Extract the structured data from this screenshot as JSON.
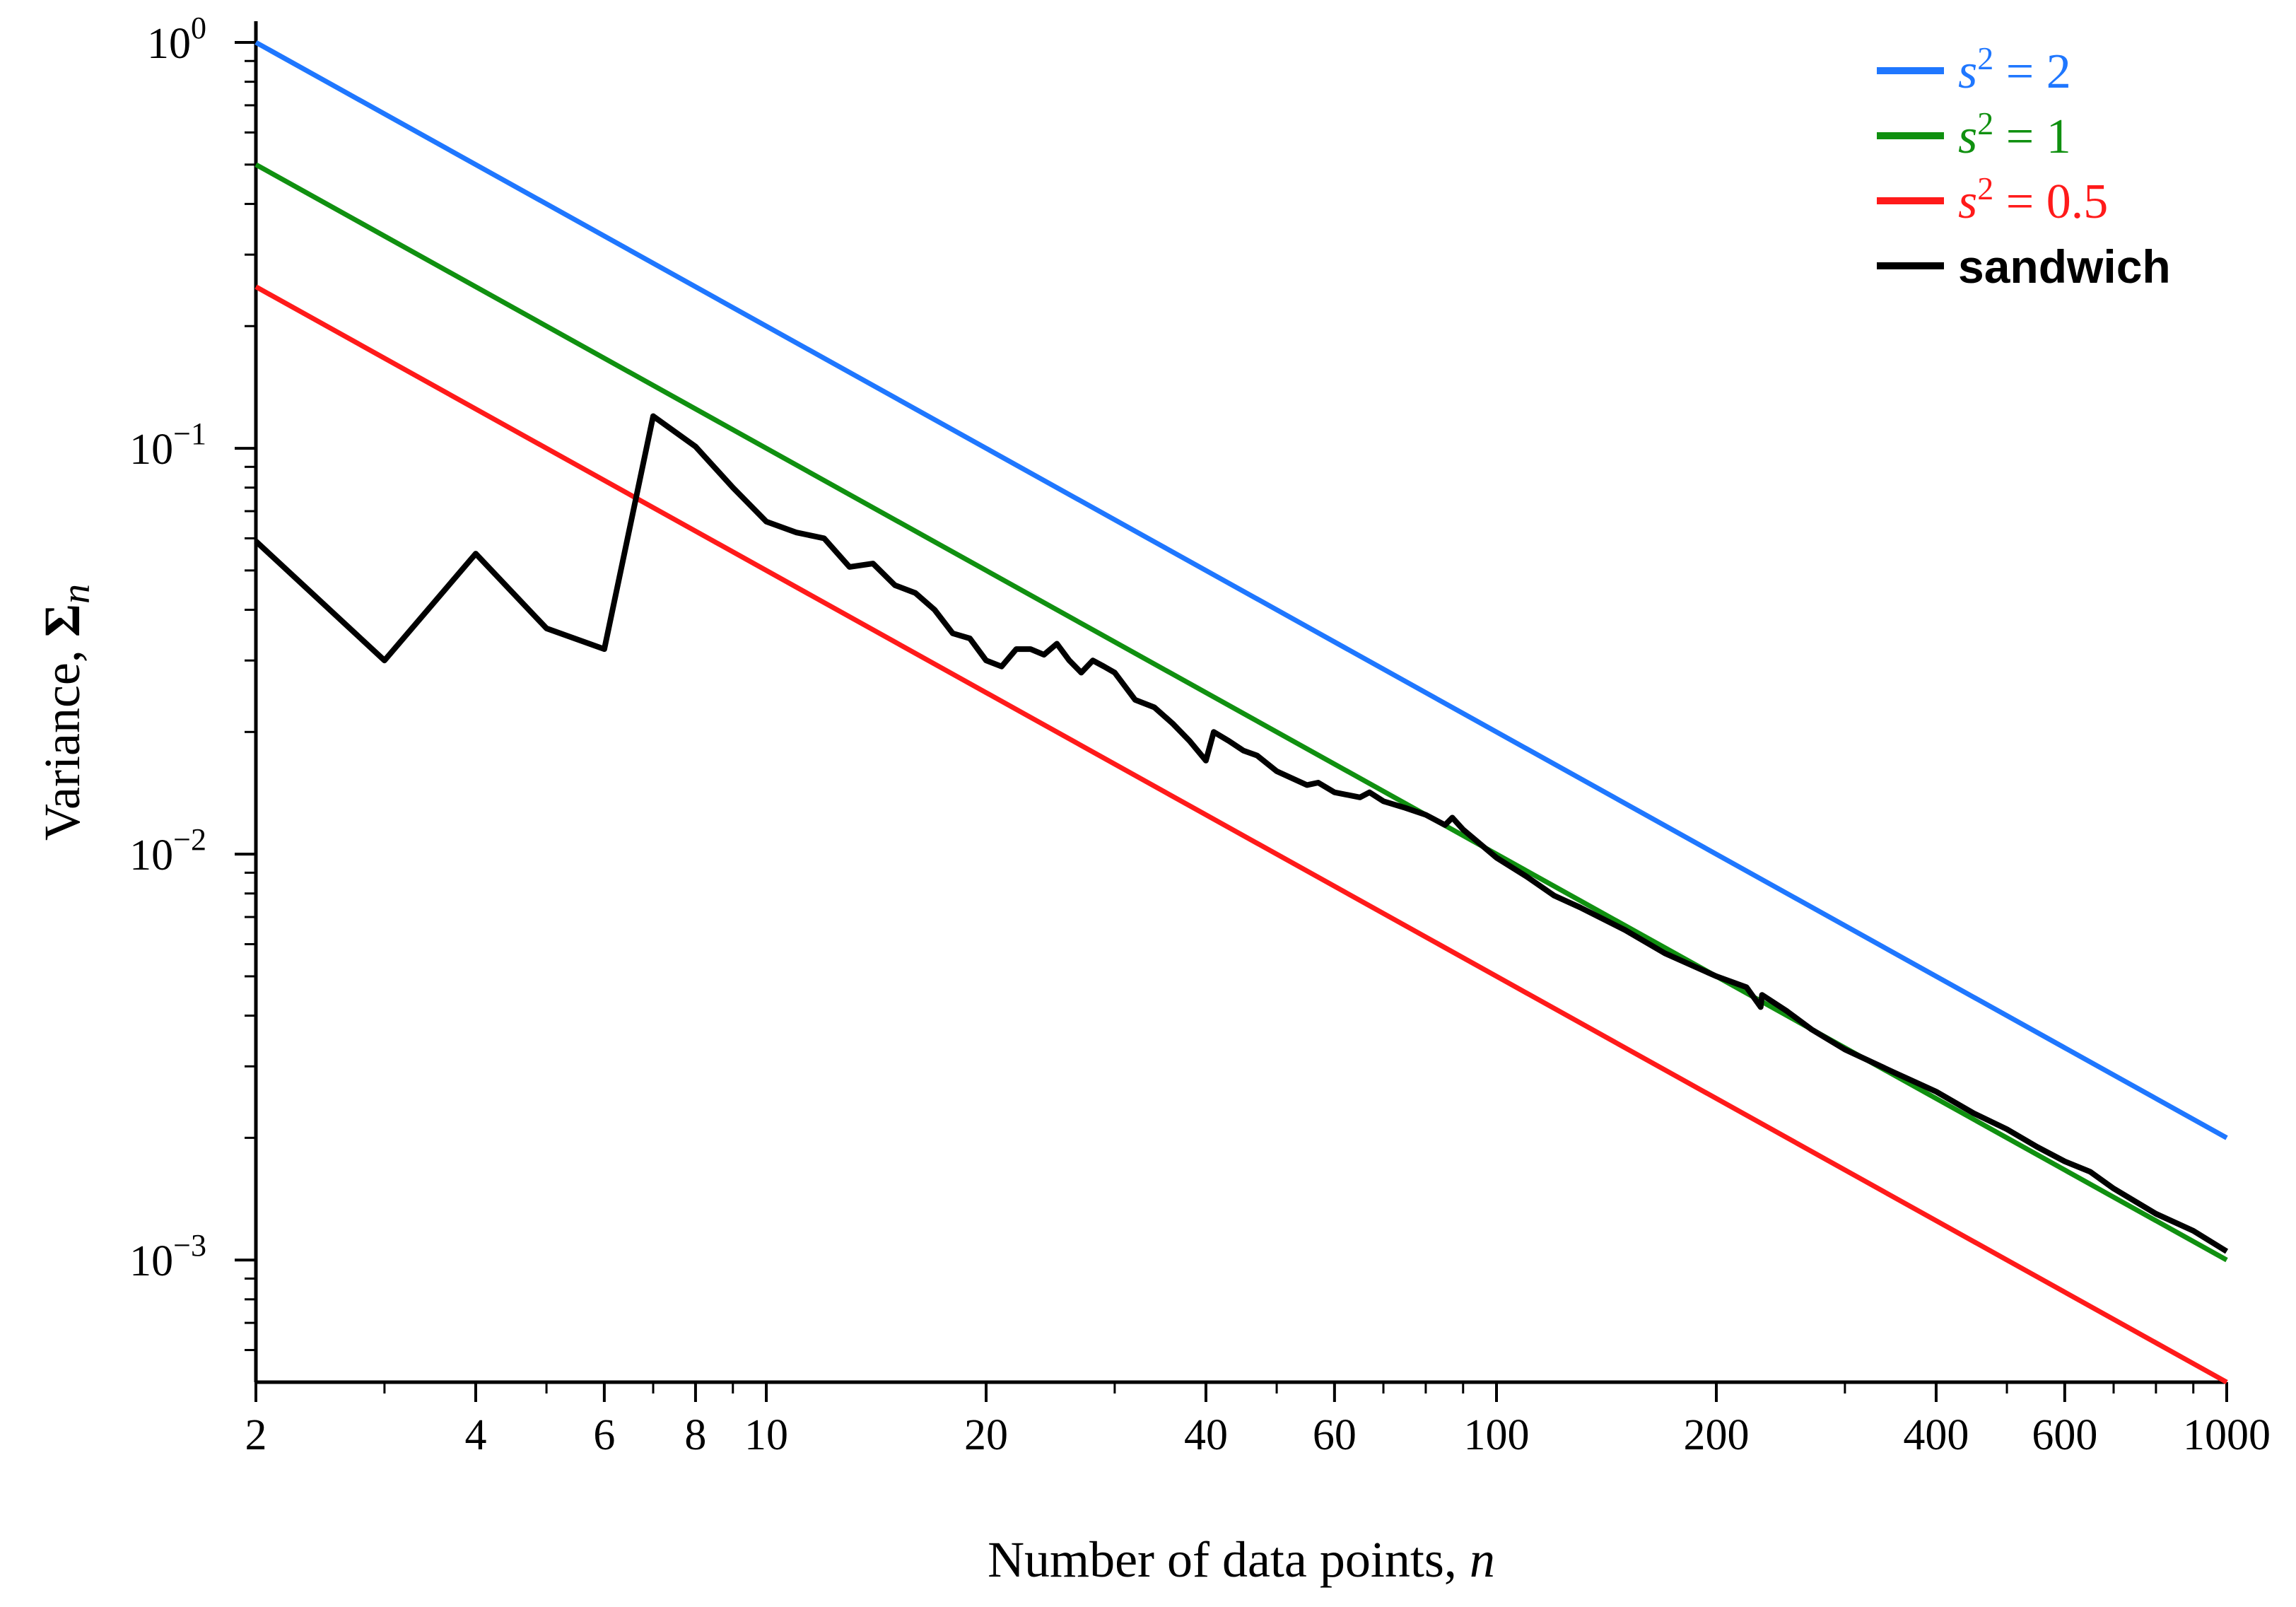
{
  "chart_data": {
    "type": "line",
    "xscale": "log",
    "yscale": "log",
    "xlim": [
      2,
      1000
    ],
    "ylim": [
      0.0005,
      1.0
    ],
    "xlabel_text": "Number of data points, ",
    "xlabel_var": "n",
    "ylabel_text": "Variance, ",
    "ylabel_symbol": "Σ",
    "ylabel_sub": "n",
    "x_ticks": [
      {
        "value": 2,
        "label": "2"
      },
      {
        "value": 4,
        "label": "4"
      },
      {
        "value": 6,
        "label": "6"
      },
      {
        "value": 8,
        "label": "8"
      },
      {
        "value": 10,
        "label": "10"
      },
      {
        "value": 20,
        "label": "20"
      },
      {
        "value": 40,
        "label": "40"
      },
      {
        "value": 60,
        "label": "60"
      },
      {
        "value": 100,
        "label": "100"
      },
      {
        "value": 200,
        "label": "200"
      },
      {
        "value": 400,
        "label": "400"
      },
      {
        "value": 600,
        "label": "600"
      },
      {
        "value": 1000,
        "label": "1000"
      }
    ],
    "x_minor_ticks": [
      3,
      5,
      7,
      9,
      30,
      50,
      70,
      80,
      90,
      300,
      500,
      700,
      800,
      900
    ],
    "y_ticks": [
      {
        "value": 1.0,
        "base": "10",
        "exp": "0"
      },
      {
        "value": 0.1,
        "base": "10",
        "exp": "−1"
      },
      {
        "value": 0.01,
        "base": "10",
        "exp": "−2"
      },
      {
        "value": 0.001,
        "base": "10",
        "exp": "−3"
      }
    ],
    "y_minor_ticks": [
      0.6,
      0.7,
      0.8,
      0.9,
      0.2,
      0.3,
      0.4,
      0.5,
      0.06,
      0.07,
      0.08,
      0.09,
      0.02,
      0.03,
      0.04,
      0.05,
      0.006,
      0.007,
      0.008,
      0.009,
      0.002,
      0.003,
      0.004,
      0.005,
      0.0006,
      0.0007,
      0.0008,
      0.0009
    ],
    "series": [
      {
        "name": "s² = 2",
        "label_var": "s",
        "label_exp": "2",
        "label_rest": " = 2",
        "color": "#1f77ff",
        "kind": "formula",
        "coef": 2.0
      },
      {
        "name": "s² = 1",
        "label_var": "s",
        "label_exp": "2",
        "label_rest": " = 1",
        "color": "#109010",
        "kind": "formula",
        "coef": 1.0
      },
      {
        "name": "s² = 0.5",
        "label_var": "s",
        "label_exp": "2",
        "label_rest": " = 0.5",
        "color": "#ff1a1a",
        "kind": "formula",
        "coef": 0.5
      },
      {
        "name": "sandwich",
        "label_plain": "sandwich",
        "color": "#000000",
        "kind": "points",
        "x": [
          2,
          3,
          4,
          5,
          6,
          7,
          8,
          9,
          10,
          11,
          12,
          13,
          14,
          15,
          16,
          17,
          18,
          19,
          20,
          21,
          22,
          23,
          24,
          25,
          26,
          27,
          28,
          29,
          30,
          32,
          34,
          36,
          38,
          40,
          41,
          43,
          45,
          47,
          50,
          55,
          57,
          60,
          65,
          67,
          70,
          75,
          80,
          85,
          87,
          90,
          100,
          110,
          120,
          130,
          150,
          170,
          200,
          220,
          230,
          231,
          250,
          270,
          300,
          350,
          400,
          450,
          500,
          550,
          600,
          650,
          700,
          800,
          900,
          1000
        ],
        "y": [
          0.059,
          0.03,
          0.055,
          0.036,
          0.032,
          0.12,
          0.101,
          0.08,
          0.066,
          0.062,
          0.06,
          0.051,
          0.052,
          0.046,
          0.044,
          0.04,
          0.035,
          0.034,
          0.03,
          0.029,
          0.032,
          0.032,
          0.031,
          0.033,
          0.03,
          0.028,
          0.03,
          0.029,
          0.028,
          0.024,
          0.023,
          0.021,
          0.019,
          0.017,
          0.02,
          0.019,
          0.018,
          0.0175,
          0.016,
          0.0148,
          0.015,
          0.0142,
          0.0138,
          0.0142,
          0.0135,
          0.013,
          0.0125,
          0.0118,
          0.0123,
          0.0115,
          0.0098,
          0.0088,
          0.0079,
          0.0074,
          0.0065,
          0.0057,
          0.005,
          0.0047,
          0.0042,
          0.0045,
          0.0041,
          0.0037,
          0.0033,
          0.0029,
          0.0026,
          0.0023,
          0.0021,
          0.0019,
          0.00175,
          0.00165,
          0.0015,
          0.0013,
          0.00118,
          0.00105
        ]
      }
    ],
    "legend_position": "top-right",
    "grid": false
  }
}
